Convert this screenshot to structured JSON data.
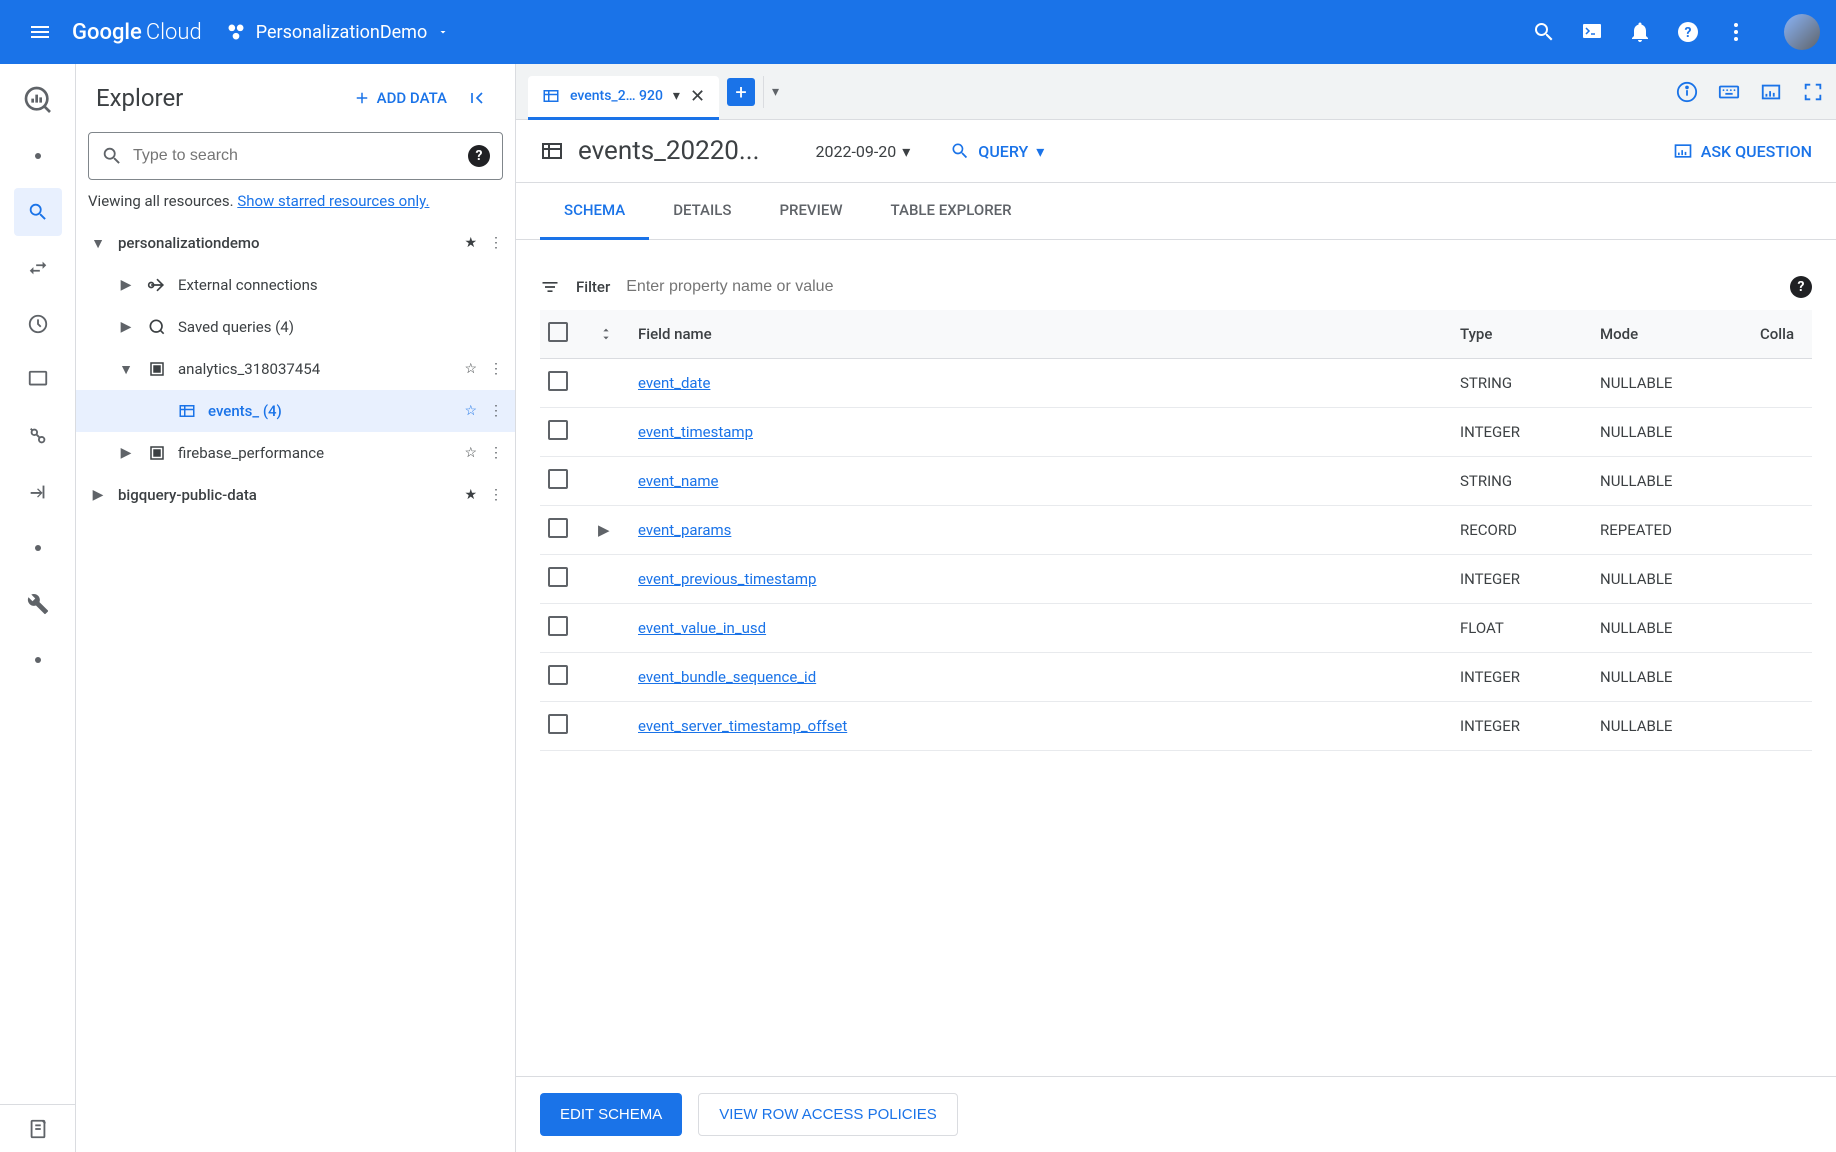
{
  "topbar": {
    "logo_strong": "Google",
    "logo_light": "Cloud",
    "project": "PersonalizationDemo"
  },
  "explorer": {
    "title": "Explorer",
    "add_data": "ADD DATA",
    "search_placeholder": "Type to search",
    "viewing_prefix": "Viewing all resources. ",
    "viewing_link": "Show starred resources only."
  },
  "tree": {
    "project": "personalizationdemo",
    "external": "External connections",
    "saved_queries": "Saved queries (4)",
    "analytics": "analytics_318037454",
    "events": "events_ (4)",
    "firebase": "firebase_performance",
    "public": "bigquery-public-data"
  },
  "tab": {
    "label": "events_2… 920"
  },
  "content": {
    "title": "events_20220...",
    "date": "2022-09-20",
    "query": "QUERY",
    "ask": "ASK QUESTION"
  },
  "subtabs": {
    "schema": "SCHEMA",
    "details": "DETAILS",
    "preview": "PREVIEW",
    "explorer": "TABLE EXPLORER"
  },
  "filter": {
    "label": "Filter",
    "placeholder": "Enter property name or value"
  },
  "schema_headers": {
    "field": "Field name",
    "type": "Type",
    "mode": "Mode",
    "coll": "Colla"
  },
  "schema_rows": [
    {
      "name": "event_date",
      "type": "STRING",
      "mode": "NULLABLE",
      "expandable": false
    },
    {
      "name": "event_timestamp",
      "type": "INTEGER",
      "mode": "NULLABLE",
      "expandable": false
    },
    {
      "name": "event_name",
      "type": "STRING",
      "mode": "NULLABLE",
      "expandable": false
    },
    {
      "name": "event_params",
      "type": "RECORD",
      "mode": "REPEATED",
      "expandable": true
    },
    {
      "name": "event_previous_timestamp",
      "type": "INTEGER",
      "mode": "NULLABLE",
      "expandable": false
    },
    {
      "name": "event_value_in_usd",
      "type": "FLOAT",
      "mode": "NULLABLE",
      "expandable": false
    },
    {
      "name": "event_bundle_sequence_id",
      "type": "INTEGER",
      "mode": "NULLABLE",
      "expandable": false
    },
    {
      "name": "event_server_timestamp_offset",
      "type": "INTEGER",
      "mode": "NULLABLE",
      "expandable": false
    }
  ],
  "footer": {
    "edit": "EDIT SCHEMA",
    "policies": "VIEW ROW ACCESS POLICIES"
  }
}
